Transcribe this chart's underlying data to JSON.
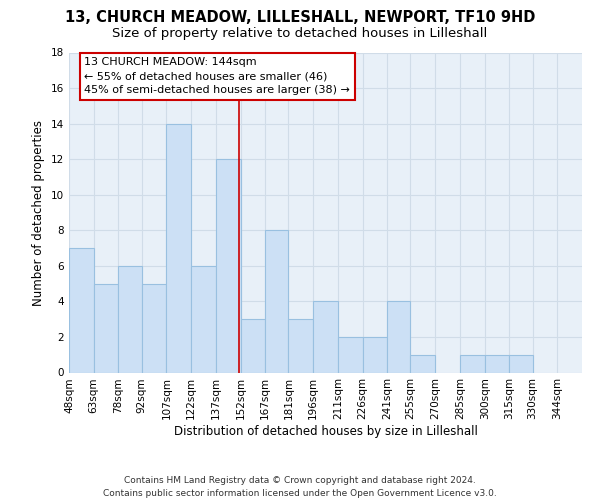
{
  "title": "13, CHURCH MEADOW, LILLESHALL, NEWPORT, TF10 9HD",
  "subtitle": "Size of property relative to detached houses in Lilleshall",
  "xlabel": "Distribution of detached houses by size in Lilleshall",
  "ylabel": "Number of detached properties",
  "footer_line1": "Contains HM Land Registry data © Crown copyright and database right 2024.",
  "footer_line2": "Contains public sector information licensed under the Open Government Licence v3.0.",
  "bin_labels": [
    "48sqm",
    "63sqm",
    "78sqm",
    "92sqm",
    "107sqm",
    "122sqm",
    "137sqm",
    "152sqm",
    "167sqm",
    "181sqm",
    "196sqm",
    "211sqm",
    "226sqm",
    "241sqm",
    "255sqm",
    "270sqm",
    "285sqm",
    "300sqm",
    "315sqm",
    "330sqm",
    "344sqm"
  ],
  "bar_heights": [
    7,
    5,
    6,
    5,
    14,
    6,
    12,
    3,
    8,
    3,
    4,
    2,
    2,
    4,
    1,
    0,
    1,
    1,
    1,
    0,
    0
  ],
  "bar_color": "#cce0f5",
  "bar_edgecolor": "#99c0e0",
  "annotation_line_color": "#cc0000",
  "annotation_box_text": "13 CHURCH MEADOW: 144sqm\n← 55% of detached houses are smaller (46)\n45% of semi-detached houses are larger (38) →",
  "ylim": [
    0,
    18
  ],
  "yticks": [
    0,
    2,
    4,
    6,
    8,
    10,
    12,
    14,
    16,
    18
  ],
  "grid_color": "#d0dce8",
  "plot_bg_color": "#e8f0f8",
  "fig_bg_color": "#ffffff",
  "title_fontsize": 10.5,
  "subtitle_fontsize": 9.5,
  "axis_label_fontsize": 8.5,
  "tick_fontsize": 7.5,
  "annotation_fontsize": 8,
  "footer_fontsize": 6.5,
  "bin_edges_sqm": [
    41,
    56,
    71,
    85,
    100,
    115,
    130,
    145,
    160,
    174,
    189,
    204,
    219,
    234,
    248,
    263,
    278,
    293,
    308,
    322,
    337,
    352
  ]
}
